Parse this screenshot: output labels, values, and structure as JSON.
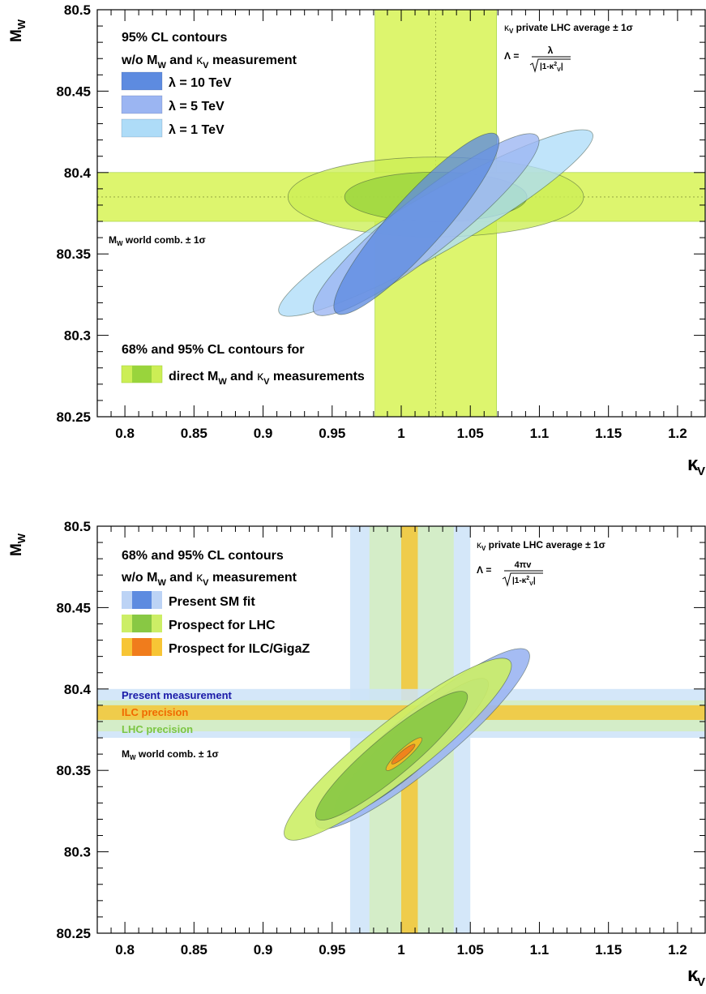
{
  "chart_data": [
    {
      "type": "contour",
      "xlabel": "κ",
      "xlabel_sub": "V",
      "ylabel": "M",
      "ylabel_sub": "W",
      "xlim": [
        0.78,
        1.22
      ],
      "ylim": [
        80.25,
        80.5
      ],
      "xticks": [
        "0.8",
        "0.85",
        "0.9",
        "0.95",
        "1",
        "1.05",
        "1.1",
        "1.15",
        "1.2"
      ],
      "yticks": [
        "80.25",
        "80.3",
        "80.35",
        "80.4",
        "80.45",
        "80.5"
      ],
      "bands": [
        {
          "name": "κ_V private LHC average ± 1σ",
          "orientation": "vertical",
          "from": 0.981,
          "to": 1.069,
          "center": 1.025,
          "color": "#ddf56e"
        },
        {
          "name": "M_W world comb. ± 1σ",
          "orientation": "horizontal",
          "from": 80.37,
          "to": 80.4,
          "center": 80.385,
          "color": "#ddf56e"
        }
      ],
      "ellipses": [
        {
          "name": "direct 95%",
          "center": [
            1.025,
            80.385
          ],
          "rx": 0.107,
          "ry": 0.0245,
          "angle": 0,
          "color": "#ccee55"
        },
        {
          "name": "direct 68%",
          "center": [
            1.025,
            80.385
          ],
          "rx": 0.066,
          "ry": 0.0152,
          "angle": 0,
          "color": "#99d43c"
        },
        {
          "name": "λ = 1 TeV",
          "x_range": [
            0.91,
            1.14
          ],
          "y_range": [
            80.313,
            80.425
          ],
          "color": "#aedcf8"
        },
        {
          "name": "λ = 5 TeV",
          "x_range": [
            0.936,
            1.1
          ],
          "y_range": [
            80.313,
            80.423
          ],
          "color": "#9bb5f2"
        },
        {
          "name": "λ = 10 TeV",
          "x_range": [
            0.952,
            1.07
          ],
          "y_range": [
            80.313,
            80.424
          ],
          "color": "#5d8be0"
        }
      ],
      "legend": {
        "title1": "95% CL contours",
        "title2_prefix": "w/o M",
        "title2_mid": " and ",
        "title2_kappa": "κ",
        "title2_suffix": " measurement",
        "entries": [
          {
            "label": "λ = 10 TeV",
            "color": "#5d8be0"
          },
          {
            "label": "λ =  5 TeV",
            "color": "#9bb5f2"
          },
          {
            "label": "λ =  1 TeV",
            "color": "#aedcf8"
          }
        ],
        "direct_title": "68% and 95% CL contours for",
        "direct_label_prefix": "direct M",
        "direct_label_mid": " and ",
        "direct_label_kappa": "κ",
        "direct_label_suffix": " measurements"
      },
      "annotations": {
        "kv_band": "κ",
        "kv_band_rest": " private LHC average ± 1σ",
        "lambda_formula": "Λ = ",
        "lambda_num": "λ",
        "lambda_den": "|1-κ",
        "mw_band": "M",
        "mw_band_rest": " world comb. ± 1σ"
      }
    },
    {
      "type": "contour",
      "xlabel": "κ",
      "xlabel_sub": "V",
      "ylabel": "M",
      "ylabel_sub": "W",
      "xlim": [
        0.78,
        1.22
      ],
      "ylim": [
        80.25,
        80.5
      ],
      "xticks": [
        "0.8",
        "0.85",
        "0.9",
        "0.95",
        "1",
        "1.05",
        "1.1",
        "1.15",
        "1.2"
      ],
      "yticks": [
        "80.25",
        "80.3",
        "80.35",
        "80.4",
        "80.45",
        "80.5"
      ],
      "bands": [
        {
          "name": "Present κ_V band",
          "orientation": "vertical",
          "from": 0.963,
          "to": 1.05,
          "color": "#cde3f8"
        },
        {
          "name": "LHC κ_V band",
          "orientation": "vertical",
          "from": 0.977,
          "to": 1.038,
          "color": "#d4edc0"
        },
        {
          "name": "ILC κ_V band",
          "orientation": "vertical",
          "from": 1.0,
          "to": 1.012,
          "color": "#f3c535"
        },
        {
          "name": "Present measurement",
          "orientation": "horizontal",
          "from": 80.37,
          "to": 80.4,
          "color": "#cde3f8"
        },
        {
          "name": "LHC precision",
          "orientation": "horizontal",
          "from": 80.374,
          "to": 80.393,
          "color": "#d4edc0"
        },
        {
          "name": "ILC precision",
          "orientation": "horizontal",
          "from": 80.381,
          "to": 80.39,
          "color": "#f3c535"
        }
      ],
      "ellipses": [
        {
          "name": "Present SM fit 95%",
          "x_range": [
            0.938,
            1.093
          ],
          "y_range": [
            80.315,
            80.424
          ],
          "color": "#9bb5f2"
        },
        {
          "name": "Present SM fit 68%",
          "x_range": [
            0.952,
            1.063
          ],
          "y_range": [
            80.323,
            80.406
          ],
          "color": "#6f9be5"
        },
        {
          "name": "LHC 95%",
          "x_range": [
            0.915,
            1.08
          ],
          "y_range": [
            80.308,
            80.418
          ],
          "color": "#ccee66"
        },
        {
          "name": "LHC 68%",
          "x_range": [
            0.938,
            1.048
          ],
          "y_range": [
            80.32,
            80.398
          ],
          "color": "#88c844"
        },
        {
          "name": "ILC 95%",
          "x_range": [
            0.989,
            1.015
          ],
          "y_range": [
            80.35,
            80.37
          ],
          "color": "#f7bb22"
        },
        {
          "name": "ILC 68%",
          "x_range": [
            0.993,
            1.01
          ],
          "y_range": [
            80.354,
            80.366
          ],
          "color": "#f07c1c"
        }
      ],
      "legend": {
        "title1": "68% and 95% CL contours",
        "title2_prefix": "w/o M",
        "title2_mid": " and ",
        "title2_kappa": "κ",
        "title2_suffix": " measurement",
        "entries": [
          {
            "label": "Present SM fit",
            "light": "#bcd3f5",
            "dark": "#5d8be0"
          },
          {
            "label": "Prospect for LHC",
            "light": "#ccee66",
            "dark": "#88c844"
          },
          {
            "label": "Prospect for ILC/GigaZ",
            "light": "#f7c535",
            "dark": "#f07c1c"
          }
        ]
      },
      "annotations": {
        "kv_band": "κ",
        "kv_band_rest": " private LHC average ± 1σ",
        "lambda_formula": "Λ = ",
        "lambda_num": "4πv",
        "lambda_den": "|1-κ",
        "present_measurement": "Present measurement",
        "ilc_precision": "ILC precision",
        "lhc_precision": "LHC precision",
        "mw_band": "M",
        "mw_band_rest": " world comb. ± 1σ"
      },
      "label_colors": {
        "present": "#1a1aa8",
        "ilc": "#f06a00",
        "lhc": "#7cc644"
      }
    }
  ]
}
